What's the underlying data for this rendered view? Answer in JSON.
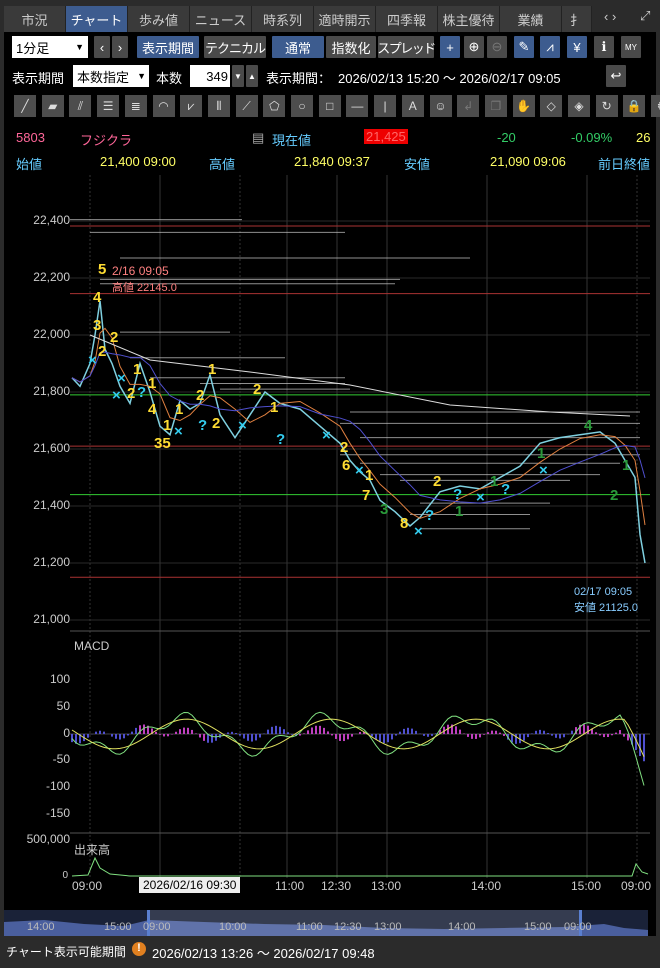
{
  "tabs": [
    "市況",
    "チャート",
    "歩み値",
    "ニュース",
    "時系列",
    "適時開示",
    "四季報",
    "株主優待",
    "業績",
    "扌"
  ],
  "active_tab": "チャート",
  "toolbar": {
    "interval": "1分足",
    "display_period": "表示期間",
    "technical": "テクニカル",
    "normal": "通常",
    "index": "指数化",
    "spread": "スプレッド"
  },
  "period": {
    "label": "表示期間",
    "mode": "本数指定",
    "count_label": "本数",
    "count": "349",
    "range_label": "表示期間：",
    "range": "2026/02/13 15:20 ～ 2026/02/17 09:05"
  },
  "drawing_tools": [
    "line",
    "ruler",
    "parallel",
    "hlines",
    "hlines2",
    "arc",
    "fan",
    "vlines",
    "gann",
    "pentagon",
    "circle",
    "rect",
    "hline",
    "vline",
    "text",
    "icon",
    "undo",
    "copy",
    "hand",
    "eraser",
    "eraser2",
    "magnet",
    "lock",
    "gear"
  ],
  "quote": {
    "code": "5803",
    "name": "フジクラ",
    "current_label": "現在値",
    "current": "21,425",
    "change": "-20",
    "change_pct": "-0.09%",
    "extra": "26",
    "open_label": "始値",
    "open": "21,400  09:00",
    "high_label": "高値",
    "high": "21,840  09:37",
    "low_label": "安値",
    "low": "21,090  09:06",
    "prev_label": "前日終値"
  },
  "chart": {
    "y_ticks": [
      "22,400",
      "22,200",
      "22,000",
      "21,800",
      "21,600",
      "21,400",
      "21,200",
      "21,000"
    ],
    "high_note_date": "2/16 09:05",
    "high_note": "高値 22145.0",
    "low_note_date": "02/17 09:05",
    "low_note": "安値 21125.0",
    "markers": [
      "5",
      "4",
      "3",
      "2",
      "2",
      "2",
      "1",
      "1",
      "1",
      "4",
      "1",
      "2",
      "1",
      "35",
      "2",
      "2",
      "1",
      "2",
      "1",
      "6",
      "7",
      "3",
      "8",
      "2",
      "1",
      "1",
      "1",
      "4",
      "1",
      "2"
    ],
    "cross_markers": [
      "×",
      "×",
      "×",
      "×",
      "×",
      "×",
      "×",
      "×",
      "×",
      "×"
    ],
    "q_markers": [
      "?",
      "?",
      "?",
      "?",
      "?",
      "?"
    ]
  },
  "macd": {
    "label": "MACD",
    "y_ticks": [
      "100",
      "50",
      "0",
      "-50",
      "-100",
      "-150"
    ]
  },
  "volume": {
    "label": "出来高",
    "y_tick": "500,000",
    "zero": "0"
  },
  "time_axis": [
    "09:00",
    "11:00",
    "12:30",
    "13:00",
    "14:00",
    "15:00",
    "09:00"
  ],
  "cursor_time": "2026/02/16 09:30",
  "navigator": [
    "14:00",
    "15:00",
    "09:00",
    "10:00",
    "11:00",
    "12:30",
    "13:00",
    "14:00",
    "15:00",
    "09:00"
  ],
  "footer": {
    "label": "チャート表示可能期間",
    "range": "2026/02/13 13:26 ～ 2026/02/17 09:48"
  },
  "colors": {
    "accent": "#3d5c8f",
    "up": "#ff0000",
    "quote_yellow": "#ffff66",
    "label_cyan": "#66ccff",
    "change_green": "#33cc66"
  }
}
